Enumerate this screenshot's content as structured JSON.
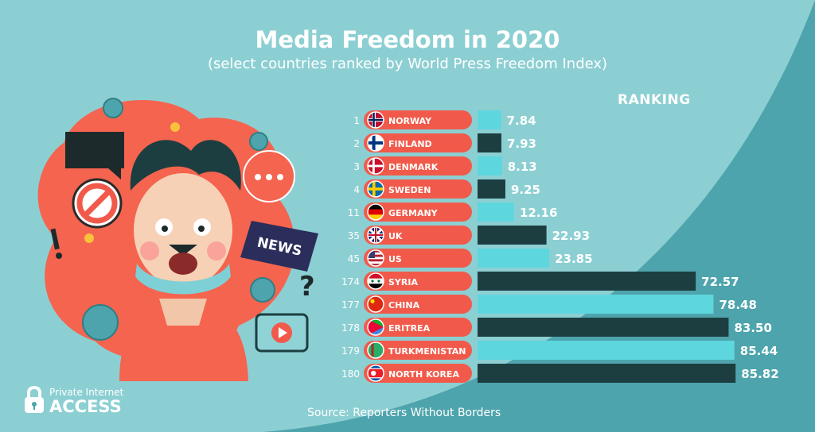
{
  "title": "Media Freedom in 2020",
  "subtitle": "(select countries ranked by World Press Freedom Index)",
  "ranking_label": "RANKING",
  "source": "Source: Reporters Without Borders",
  "logo": {
    "line1": "Private Internet",
    "line2": "ACCESS"
  },
  "illustration": {
    "news_sign": "NEWS"
  },
  "colors": {
    "background": "#8ccfd3",
    "background_dark": "#4ea4ac",
    "label_red": "#f15a4a",
    "bar_light": "#5ed6de",
    "bar_dark": "#1d3e40"
  },
  "chart_data": {
    "type": "bar",
    "orientation": "horizontal",
    "categories": [
      "NORWAY",
      "FINLAND",
      "DENMARK",
      "SWEDEN",
      "GERMANY",
      "UK",
      "US",
      "SYRIA",
      "CHINA",
      "ERITREA",
      "TURKMENISTAN",
      "NORTH KOREA"
    ],
    "ranks": [
      "1",
      "2",
      "3",
      "4",
      "11",
      "35",
      "45",
      "174",
      "177",
      "178",
      "179",
      "180"
    ],
    "values": [
      7.84,
      7.93,
      8.13,
      9.25,
      12.16,
      22.93,
      23.85,
      72.57,
      78.48,
      83.5,
      85.44,
      85.82
    ],
    "value_labels": [
      "7.84",
      "7.93",
      "8.13",
      "9.25",
      "12.16",
      "22.93",
      "23.85",
      "72.57",
      "78.48",
      "83.50",
      "85.44",
      "85.82"
    ],
    "flags": [
      "norway",
      "finland",
      "denmark",
      "sweden",
      "germany",
      "uk",
      "us",
      "syria",
      "china",
      "eritrea",
      "turkmenistan",
      "north-korea"
    ],
    "bar_colors": [
      "light",
      "dark",
      "light",
      "dark",
      "light",
      "dark",
      "light",
      "dark",
      "light",
      "dark",
      "light",
      "dark"
    ],
    "title": "Media Freedom in 2020",
    "ylabel": "RANKING",
    "xlim": [
      0,
      100
    ],
    "grid": false,
    "legend": "none"
  }
}
